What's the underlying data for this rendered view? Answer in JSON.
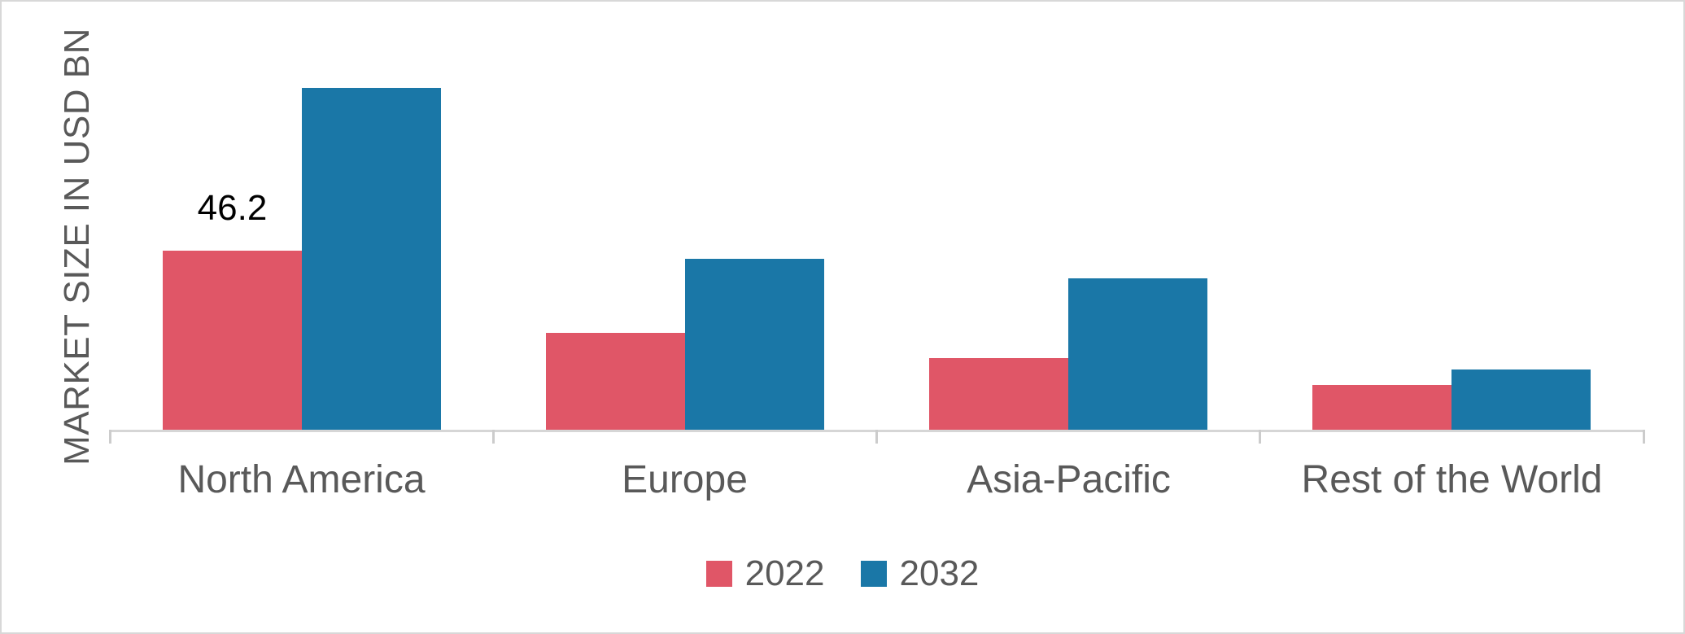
{
  "chart_data": {
    "type": "bar",
    "title": "",
    "xlabel": "",
    "ylabel": "MARKET SIZE IN USD BN",
    "categories": [
      "North America",
      "Europe",
      "Asia-Pacific",
      "Rest of the World"
    ],
    "series": [
      {
        "name": "2022",
        "color": "#e05667",
        "values": [
          46.2,
          25.0,
          18.5,
          11.6
        ]
      },
      {
        "name": "2032",
        "color": "#1a77a7",
        "values": [
          88.2,
          44.1,
          39.1,
          15.5
        ]
      }
    ],
    "annotations": [
      {
        "series_index": 0,
        "category_index": 0,
        "text": "46.2"
      }
    ],
    "ylim": [
      0,
      95
    ],
    "grid": false,
    "y_axis_ticks_visible": false,
    "legend_position": "bottom"
  },
  "style": {
    "text_color": "#595959",
    "data_label_color": "#000000",
    "axis_line_color": "#d6d6d6",
    "figure_border_color": "#d8d8d8"
  }
}
